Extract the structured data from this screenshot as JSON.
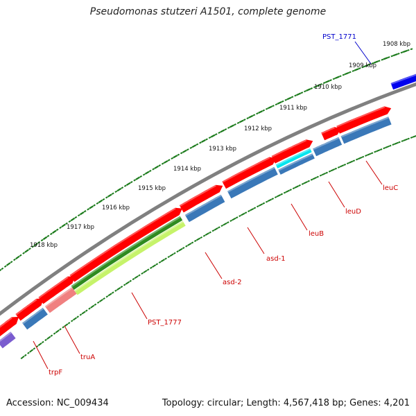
{
  "title": "Pseudomonas stutzeri A1501, complete genome",
  "footer": {
    "accession": "Accession: NC_009434",
    "summary": "Topology: circular; Length: 4,567,418 bp; Genes: 4,201"
  },
  "ticks": [
    "1908 kbp",
    "1909 kbp",
    "1910 kbp",
    "1911 kbp",
    "1912 kbp",
    "1913 kbp",
    "1914 kbp",
    "1915 kbp",
    "1916 kbp",
    "1917 kbp",
    "1918 kbp"
  ],
  "gene_labels": [
    "PST_1771",
    "leuC",
    "leuD",
    "leuB",
    "asd-1",
    "asd-2",
    "PST_1777",
    "truA",
    "trpF"
  ],
  "colors": {
    "backbone": "#808080",
    "cds_red": "#ff0000",
    "gene_blue": "#3a78b8",
    "cyan": "#00e5ee",
    "green": "#2e8b1f",
    "lime": "#c6f36a",
    "pink": "#f08080",
    "navy": "#0000ee",
    "tick_green": "#1a7a1a",
    "label_red": "#cc0000",
    "label_blue": "#0000cc",
    "purple": "#7a5ccf"
  }
}
